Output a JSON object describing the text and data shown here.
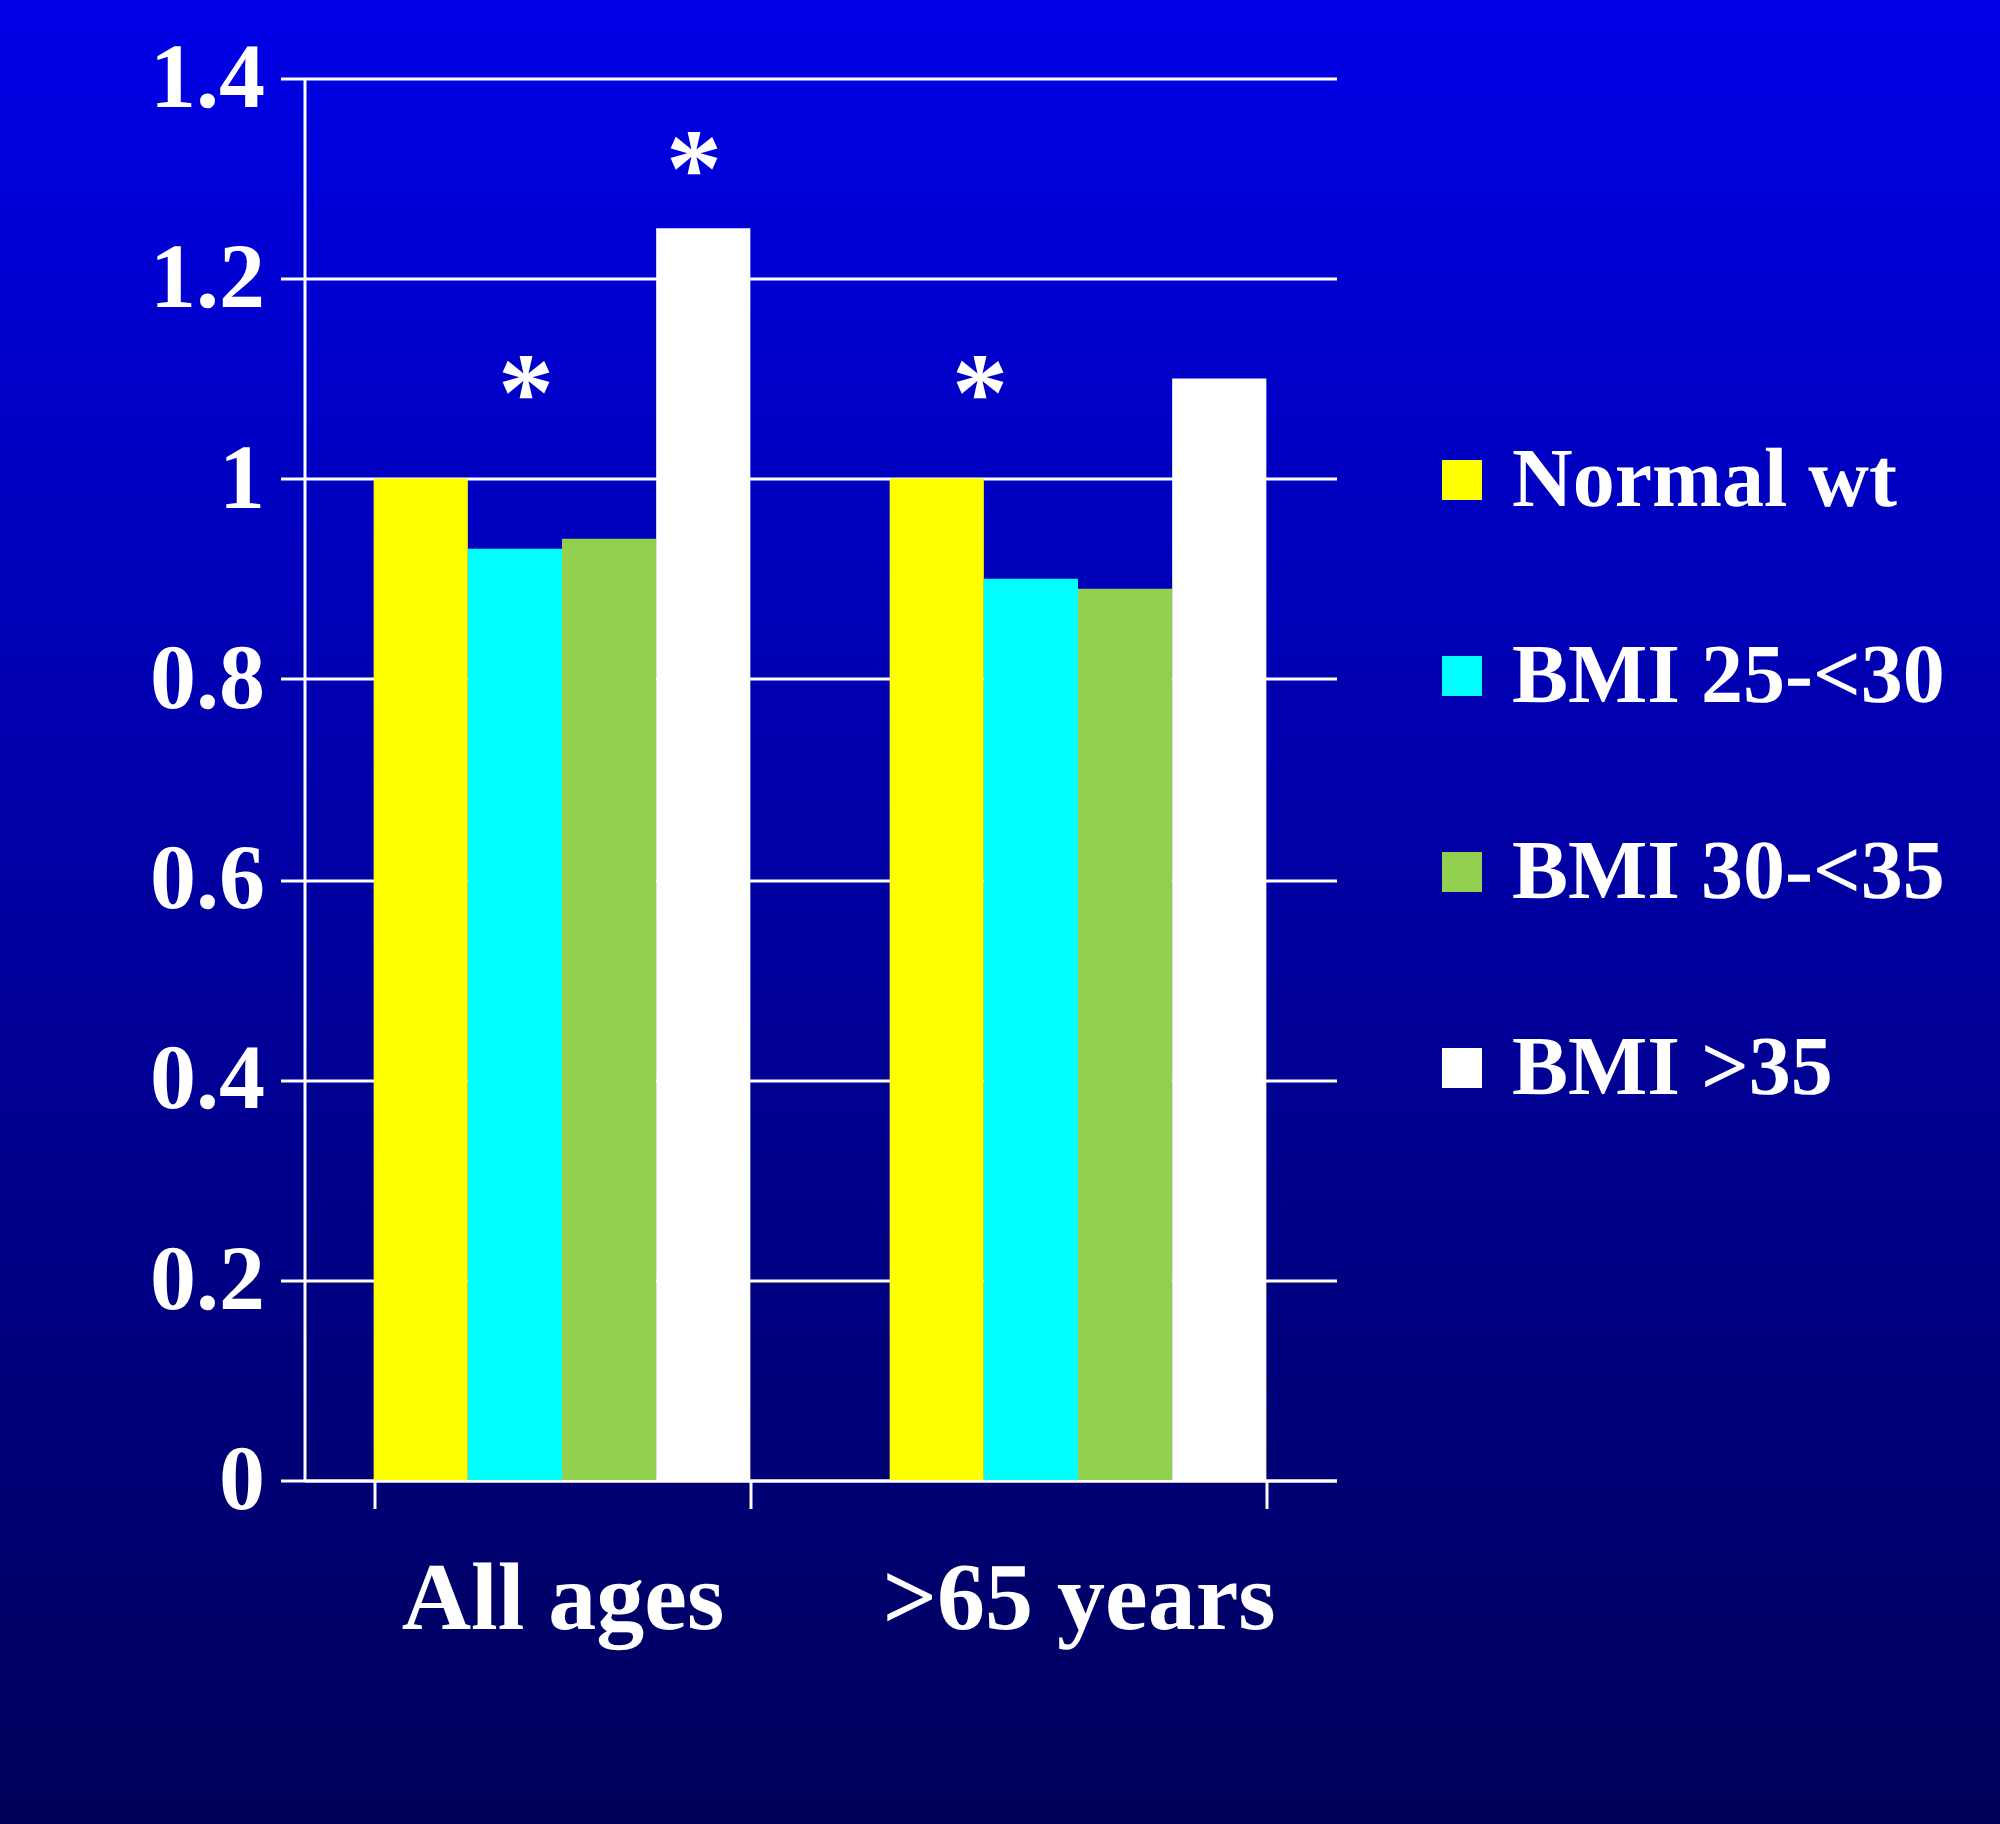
{
  "chart_data": {
    "type": "bar",
    "categories": [
      "All ages",
      ">65 years"
    ],
    "series": [
      {
        "name": "Normal wt",
        "color": "#ffff00",
        "values": [
          1.0,
          1.0
        ]
      },
      {
        "name": "BMI 25-<30",
        "color": "#00ffff",
        "values": [
          0.93,
          0.9
        ]
      },
      {
        "name": "BMI 30-<35",
        "color": "#92d050",
        "values": [
          0.94,
          0.89
        ]
      },
      {
        "name": "BMI >35",
        "color": "#ffffff",
        "values": [
          1.25,
          1.1
        ]
      }
    ],
    "ylim": [
      0,
      1.4
    ],
    "yticks": [
      0,
      0.2,
      0.4,
      0.6,
      0.8,
      1,
      1.2,
      1.4
    ],
    "grid": "y",
    "legend": "right",
    "annotations": [
      "*",
      "*",
      "*"
    ]
  }
}
